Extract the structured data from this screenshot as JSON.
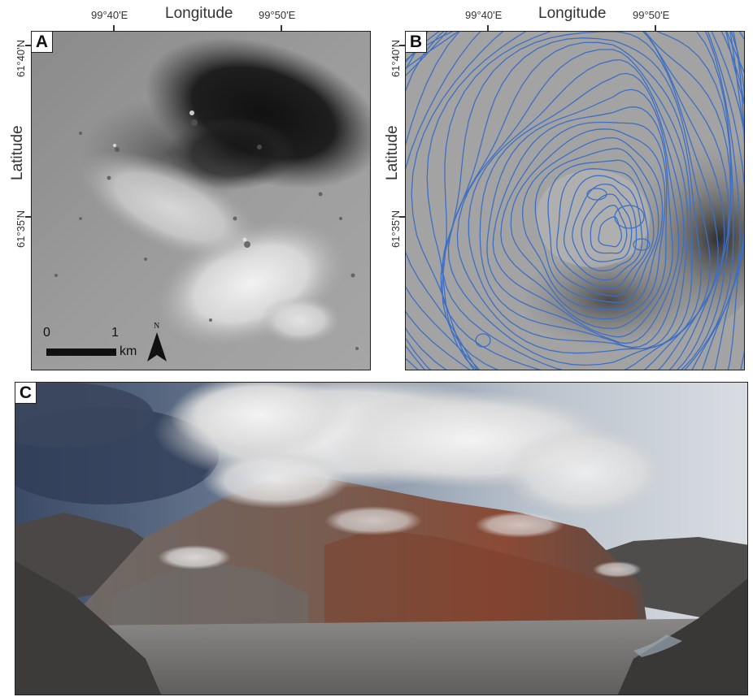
{
  "panel_a": {
    "label": "A",
    "x_axis_title": "Longitude",
    "y_axis_title": "Latitude",
    "x_ticks": [
      "99°40'E",
      "99°50'E"
    ],
    "y_ticks": [
      "61°40'N",
      "61°35'N"
    ],
    "scale_bar": {
      "start": "0",
      "end": "1",
      "unit": "km"
    },
    "north_label": "N"
  },
  "panel_b": {
    "label": "B",
    "x_axis_title": "Longitude",
    "y_axis_title": "Latitude",
    "x_ticks": [
      "99°40'E",
      "99°50'E"
    ],
    "y_ticks": [
      "61°40'N",
      "61°35'N"
    ],
    "contour_color": "#3d6fc4"
  },
  "panel_c": {
    "label": "C"
  }
}
